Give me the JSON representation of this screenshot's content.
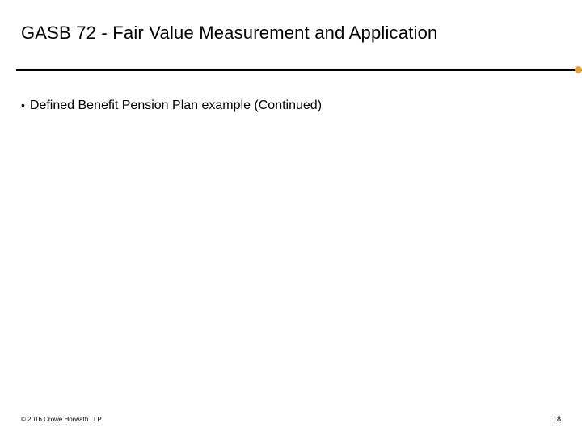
{
  "title": "GASB 72 - Fair Value Measurement and Application",
  "divider": {
    "line_color": "#000000",
    "dot_color": "#e6a23c"
  },
  "bullets": [
    {
      "text": "Defined Benefit Pension Plan example (Continued)"
    }
  ],
  "footer": {
    "copyright": "© 2016 Crowe Horwath LLP",
    "page_number": "18"
  },
  "styling": {
    "background_color": "#ffffff",
    "title_fontsize": 22,
    "title_color": "#000000",
    "bullet_fontsize": 16,
    "bullet_color": "#000000",
    "footer_fontsize": 8,
    "footer_color": "#000000"
  }
}
